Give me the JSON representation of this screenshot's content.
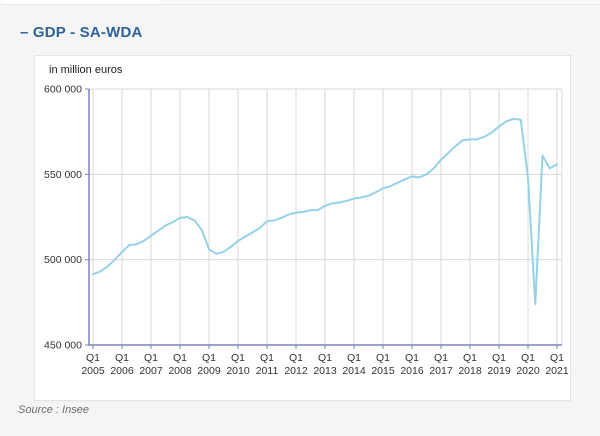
{
  "header": {
    "title": "– GDP - SA-WDA"
  },
  "chart": {
    "unit_label": "in million euros"
  },
  "footer": {
    "source": "Source : Insee"
  },
  "colors": {
    "title": "#2e6399",
    "line": "#96d1e7",
    "axis": "#8181bb",
    "grid": "#d9d9d9",
    "tick_text": "#333333"
  },
  "chart_data": {
    "type": "line",
    "title": "GDP - SA-WDA",
    "ylabel": "in million euros",
    "xlabel": "",
    "x_start": "2005-Q1",
    "x_end": "2021-Q1",
    "frequency": "quarterly",
    "grid": true,
    "legend": "none",
    "ylim": [
      450000,
      600000
    ],
    "yticks": [
      {
        "value": 450000,
        "label": "450 000"
      },
      {
        "value": 500000,
        "label": "500 000"
      },
      {
        "value": 550000,
        "label": "550 000"
      },
      {
        "value": 600000,
        "label": "600 000"
      }
    ],
    "xticks": [
      "Q1 2005",
      "Q1 2006",
      "Q1 2007",
      "Q1 2008",
      "Q1 2009",
      "Q1 2010",
      "Q1 2011",
      "Q1 2012",
      "Q1 2013",
      "Q1 2014",
      "Q1 2015",
      "Q1 2016",
      "Q1 2017",
      "Q1 2018",
      "Q1 2019",
      "Q1 2020",
      "Q1 2021"
    ],
    "series": [
      {
        "name": "GDP SA-WDA (million euros)",
        "color": "#96d1e7",
        "values": [
          491500,
          493000,
          496000,
          500000,
          504500,
          508500,
          509000,
          511000,
          514000,
          517000,
          520000,
          522000,
          524500,
          525000,
          523000,
          517500,
          506000,
          503500,
          504500,
          507500,
          511000,
          513500,
          516000,
          518500,
          522500,
          523000,
          524500,
          526500,
          527500,
          528000,
          529000,
          529000,
          531500,
          533000,
          533500,
          534500,
          535800,
          536500,
          537500,
          539500,
          541800,
          543000,
          545000,
          547000,
          548800,
          548200,
          550000,
          553500,
          558500,
          562500,
          566500,
          570000,
          570500,
          570500,
          572000,
          574500,
          578000,
          581000,
          582500,
          582000,
          548000,
          474000,
          561000,
          553500,
          556000
        ]
      }
    ]
  }
}
